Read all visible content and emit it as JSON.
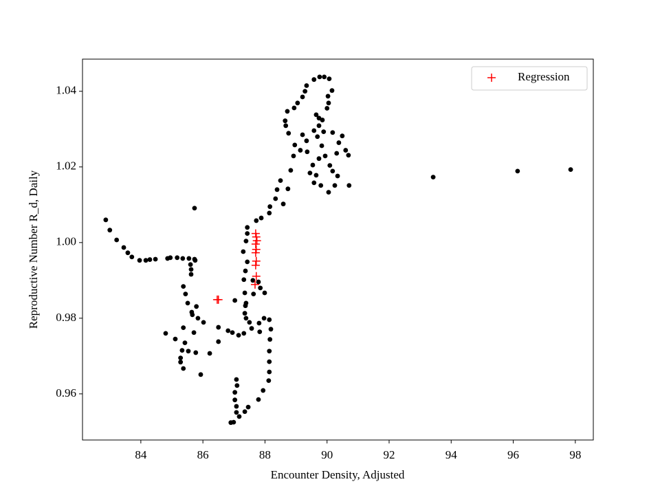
{
  "chart_data": {
    "type": "scatter",
    "xlabel": "Encounter Density, Adjusted",
    "ylabel": "Reproductive Number R_d, Daily",
    "xlim": [
      82.12,
      98.58
    ],
    "ylim": [
      0.9478,
      1.0485
    ],
    "xticks": [
      84,
      86,
      88,
      90,
      92,
      94,
      96,
      98
    ],
    "yticks": [
      0.96,
      0.98,
      {
        "value": 1,
        "label": "1.00"
      },
      1.02,
      1.04
    ],
    "legend": "upper right",
    "series": [
      {
        "color": "#000000",
        "marker": "dot",
        "x": [
          82.87,
          83.0,
          83.22,
          83.45,
          83.58,
          83.71,
          83.96,
          84.16,
          84.29,
          84.47,
          84.86,
          84.95,
          85.17,
          85.35,
          85.55,
          85.73,
          85.75,
          85.6,
          85.62,
          85.62,
          85.37,
          85.44,
          85.51,
          85.64,
          85.66,
          85.79,
          85.84,
          86.02,
          85.71,
          85.37,
          85.11,
          84.8,
          85.42,
          85.33,
          85.53,
          85.28,
          85.28,
          85.37,
          85.77,
          85.93,
          86.22,
          86.5,
          86.5,
          85.73,
          86.81,
          86.95,
          87.15,
          87.32,
          87.57,
          87.81,
          87.83,
          87.97,
          88.14,
          88.19,
          88.16,
          88.14,
          88.14,
          88.14,
          88.12,
          87.94,
          87.79,
          87.46,
          87.35,
          87.17,
          86.99,
          86.9,
          87.08,
          87.08,
          87.03,
          87.03,
          87.1,
          87.08,
          87.03,
          87.39,
          87.63,
          87.85,
          87.99,
          87.79,
          87.61,
          87.35,
          87.37,
          87.35,
          87.39,
          87.5,
          87.43,
          87.37,
          87.32,
          87.43,
          87.43,
          87.39,
          87.3,
          87.72,
          87.88,
          88.14,
          88.16,
          88.34,
          88.39,
          88.5,
          88.59,
          88.74,
          88.83,
          88.92,
          88.96,
          89.21,
          89.34,
          89.36,
          89.14,
          88.76,
          88.67,
          88.65,
          88.72,
          88.94,
          89.05,
          89.21,
          89.29,
          89.34,
          89.58,
          89.76,
          89.91,
          90.07,
          90.16,
          90.03,
          90.05,
          90.0,
          89.85,
          89.74,
          89.58,
          89.69,
          89.83,
          89.94,
          89.74,
          89.54,
          89.45,
          89.65,
          89.58,
          89.8,
          90.05,
          90.25,
          90.34,
          90.18,
          90.09,
          90.31,
          90.38,
          90.6,
          90.69,
          90.49,
          90.18,
          89.89,
          89.65,
          89.74,
          90.71,
          93.42,
          96.14,
          97.85
        ],
        "y": [
          1.006,
          1.0033,
          1.0007,
          0.9987,
          0.9973,
          0.9962,
          0.9953,
          0.9953,
          0.9955,
          0.9956,
          0.9958,
          0.996,
          0.996,
          0.9958,
          0.9958,
          0.9956,
          0.9953,
          0.9942,
          0.9929,
          0.9916,
          0.9884,
          0.9864,
          0.984,
          0.9816,
          0.9809,
          0.9831,
          0.98,
          0.9789,
          0.9762,
          0.9775,
          0.9745,
          0.976,
          0.9735,
          0.9715,
          0.9713,
          0.9695,
          0.9684,
          0.9667,
          0.9709,
          0.9651,
          0.9707,
          0.9776,
          0.9738,
          1.0091,
          0.9767,
          0.9762,
          0.9755,
          0.976,
          0.9773,
          0.9787,
          0.9764,
          0.98,
          0.9796,
          0.9771,
          0.9744,
          0.9713,
          0.9685,
          0.9658,
          0.9635,
          0.9609,
          0.9585,
          0.9565,
          0.9553,
          0.954,
          0.9525,
          0.9524,
          0.9551,
          0.9567,
          0.9584,
          0.9604,
          0.9622,
          0.9638,
          0.9847,
          0.984,
          0.9864,
          0.988,
          0.9867,
          0.9896,
          0.99,
          0.9867,
          0.9833,
          0.9813,
          0.98,
          0.9789,
          0.9949,
          0.9925,
          0.9902,
          1.004,
          1.0024,
          1.0004,
          0.9976,
          1.0058,
          1.0065,
          1.0078,
          1.0095,
          1.0116,
          1.014,
          1.0164,
          1.0102,
          1.0142,
          1.0191,
          1.0229,
          1.0258,
          1.0285,
          1.0269,
          1.024,
          1.0244,
          1.0289,
          1.0309,
          1.0322,
          1.0347,
          1.0356,
          1.0369,
          1.0385,
          1.04,
          1.0415,
          1.0431,
          1.0438,
          1.0438,
          1.0433,
          1.0402,
          1.0387,
          1.0369,
          1.0355,
          1.0324,
          1.0309,
          1.0296,
          1.028,
          1.0256,
          1.0229,
          1.0222,
          1.0205,
          1.0184,
          1.0178,
          1.0158,
          1.0151,
          1.0133,
          1.0151,
          1.0176,
          1.0189,
          1.0204,
          1.0236,
          1.0264,
          1.0244,
          1.0231,
          1.0282,
          1.0291,
          1.0293,
          1.0338,
          1.0329,
          1.0151,
          1.0173,
          1.0189,
          1.0193
        ]
      },
      {
        "name": "Regression",
        "color": "#ff0000",
        "marker": "plus",
        "x": [
          86.46,
          86.5,
          87.7,
          87.72,
          87.74,
          87.7,
          87.72,
          87.7,
          87.72,
          87.7,
          87.72,
          87.68
        ],
        "y": [
          0.9849,
          0.9849,
          1.0024,
          1.0015,
          1.0005,
          0.9996,
          0.9982,
          0.9973,
          0.9951,
          0.994,
          0.9911,
          0.9889
        ]
      }
    ]
  }
}
